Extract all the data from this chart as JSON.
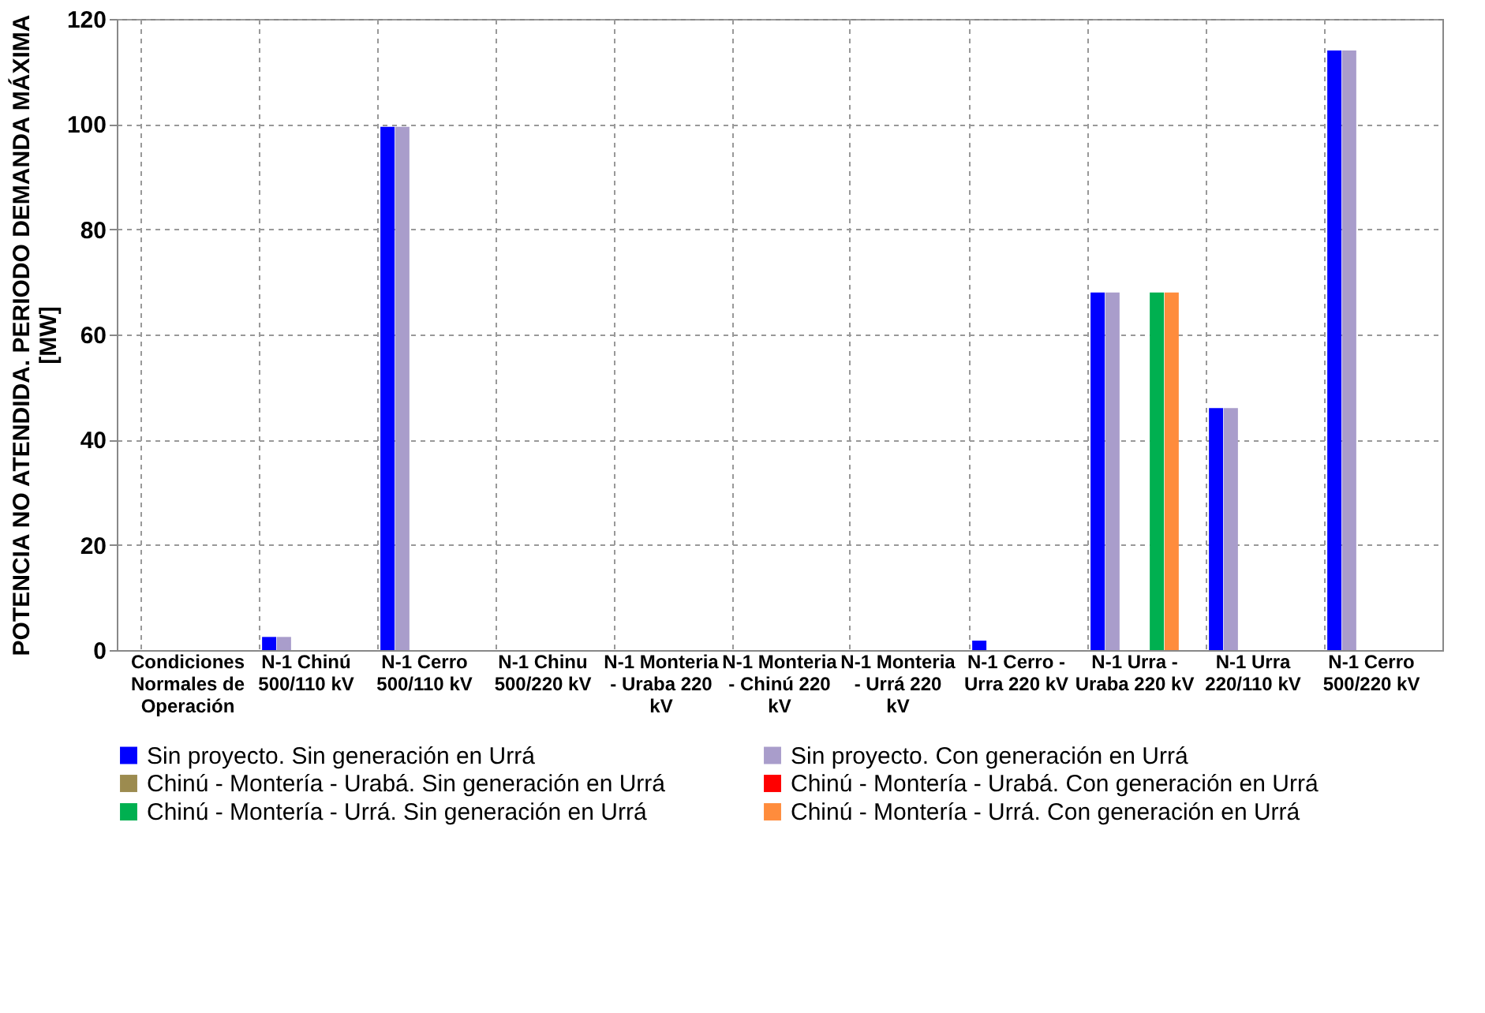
{
  "chart_data": {
    "type": "bar",
    "ylabel": "POTENCIA NO ATENDIDA. PERIODO DEMANDA MÁXIMA [MW]",
    "categories": [
      "Condiciones Normales de Operación",
      "N-1 Chinú 500/110 kV",
      "N-1 Cerro 500/110 kV",
      "N-1 Chinu 500/220 kV",
      "N-1 Monteria - Uraba 220 kV",
      "N-1 Monteria - Chinú 220 kV",
      "N-1 Monteria - Urrá 220 kV",
      "N-1 Cerro - Urra 220 kV",
      "N-1 Urra - Uraba 220 kV",
      "N-1 Urra 220/110 kV",
      "N-1 Cerro 500/220 kV"
    ],
    "series": [
      {
        "name": "Sin proyecto. Sin generación en Urrá",
        "color": "#0000ff",
        "values": [
          0,
          2.5,
          99.5,
          0,
          0,
          0,
          0,
          1.8,
          68,
          46,
          114
        ]
      },
      {
        "name": "Sin proyecto. Con generación en Urrá",
        "color": "#a99dcb",
        "values": [
          0,
          2.5,
          99.5,
          0,
          0,
          0,
          0,
          0,
          68,
          46,
          114
        ]
      },
      {
        "name": "Chinú - Montería - Urabá. Sin generación en Urrá",
        "color": "#9c8b4f",
        "values": [
          0,
          0,
          0,
          0,
          0,
          0,
          0,
          0,
          0,
          0,
          0
        ]
      },
      {
        "name": "Chinú - Montería - Urabá. Con generación en Urrá",
        "color": "#ff0000",
        "values": [
          0,
          0,
          0,
          0,
          0,
          0,
          0,
          0,
          0,
          0,
          0
        ]
      },
      {
        "name": "Chinú - Montería - Urrá. Sin generación en Urrá",
        "color": "#00b050",
        "values": [
          0,
          0,
          0,
          0,
          0,
          0,
          0,
          0,
          68,
          0,
          0
        ]
      },
      {
        "name": "Chinú - Montería - Urrá. Con generación en Urrá",
        "color": "#ff8c3c",
        "values": [
          0,
          0,
          0,
          0,
          0,
          0,
          0,
          0,
          68,
          0,
          0
        ]
      }
    ],
    "ylim": [
      0,
      120
    ],
    "yticks": [
      0,
      20,
      40,
      60,
      80,
      100,
      120
    ],
    "grid": true,
    "legend": "bottom"
  }
}
